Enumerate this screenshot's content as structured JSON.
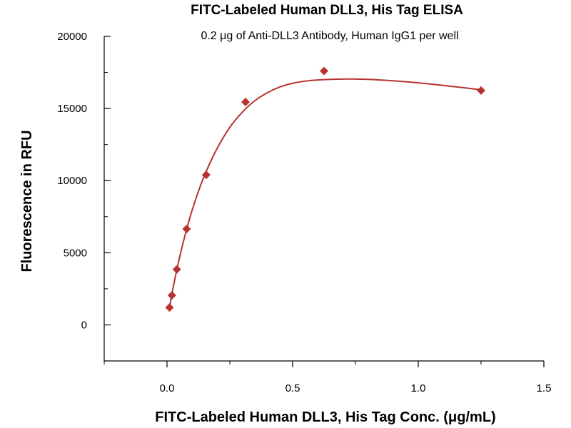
{
  "chart_data": {
    "type": "scatter",
    "title": "FITC-Labeled Human DLL3, His Tag ELISA",
    "subtitle": "0.2 μg of Anti-DLL3 Antibody, Human IgG1 per well",
    "xlabel": "FITC-Labeled Human DLL3, His Tag Conc. (μg/mL)",
    "ylabel": "Fluorescence in RFU",
    "xlim": [
      -0.25,
      1.5
    ],
    "ylim": [
      -2500,
      20000
    ],
    "x_ticks": [
      0.0,
      0.5,
      1.0,
      1.5
    ],
    "x_tick_labels": [
      "0.0",
      "0.5",
      "1.0",
      "1.5"
    ],
    "y_ticks": [
      0,
      5000,
      10000,
      15000,
      20000
    ],
    "y_tick_labels": [
      "0",
      "5000",
      "10000",
      "15000",
      "20000"
    ],
    "grid": false,
    "legend": "none",
    "marker": "diamond",
    "color": "#b83232",
    "series": [
      {
        "points": [
          {
            "x": 0.0098,
            "y": 1200
          },
          {
            "x": 0.0195,
            "y": 2050
          },
          {
            "x": 0.039,
            "y": 3850
          },
          {
            "x": 0.078,
            "y": 6650
          },
          {
            "x": 0.156,
            "y": 10400
          },
          {
            "x": 0.3125,
            "y": 15450
          },
          {
            "x": 0.625,
            "y": 17600
          },
          {
            "x": 1.25,
            "y": 16250
          }
        ]
      }
    ],
    "fit_curve": [
      {
        "x": 0.0098,
        "y": 1200
      },
      {
        "x": 0.02,
        "y": 2200
      },
      {
        "x": 0.04,
        "y": 3900
      },
      {
        "x": 0.06,
        "y": 5400
      },
      {
        "x": 0.08,
        "y": 6750
      },
      {
        "x": 0.1,
        "y": 7950
      },
      {
        "x": 0.13,
        "y": 9500
      },
      {
        "x": 0.16,
        "y": 10800
      },
      {
        "x": 0.2,
        "y": 12250
      },
      {
        "x": 0.25,
        "y": 13700
      },
      {
        "x": 0.3,
        "y": 14750
      },
      {
        "x": 0.35,
        "y": 15550
      },
      {
        "x": 0.4,
        "y": 16100
      },
      {
        "x": 0.45,
        "y": 16500
      },
      {
        "x": 0.5,
        "y": 16750
      },
      {
        "x": 0.55,
        "y": 16900
      },
      {
        "x": 0.6,
        "y": 16980
      },
      {
        "x": 0.7,
        "y": 17040
      },
      {
        "x": 0.8,
        "y": 17020
      },
      {
        "x": 0.9,
        "y": 16920
      },
      {
        "x": 1.0,
        "y": 16780
      },
      {
        "x": 1.1,
        "y": 16600
      },
      {
        "x": 1.25,
        "y": 16300
      }
    ]
  }
}
